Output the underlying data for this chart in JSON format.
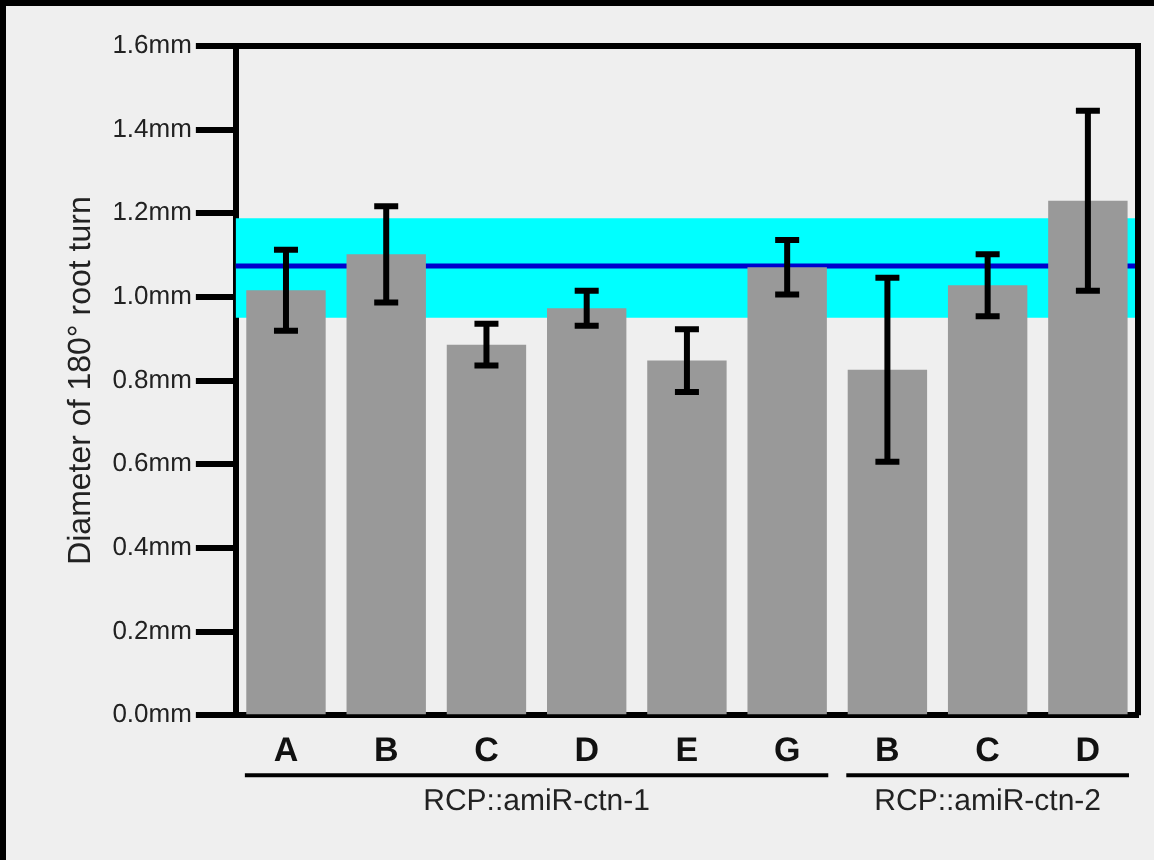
{
  "chart_data": {
    "type": "bar",
    "ylabel": "Diameter of 180° root turn",
    "categories": [
      "A",
      "B",
      "C",
      "D",
      "E",
      "G",
      "B",
      "C",
      "D"
    ],
    "values": [
      1.016,
      1.102,
      0.886,
      0.973,
      0.848,
      1.071,
      0.826,
      1.028,
      1.23
    ],
    "errors": [
      0.097,
      0.115,
      0.05,
      0.042,
      0.075,
      0.065,
      0.22,
      0.074,
      0.215
    ],
    "color": "#999999",
    "ylim": [
      0,
      1.6
    ],
    "yticks": [
      {
        "value": 0,
        "label": "0.0mm"
      },
      {
        "value": 0.2,
        "label": "0.2mm"
      },
      {
        "value": 0.4,
        "label": "0.4mm"
      },
      {
        "value": 0.6,
        "label": "0.6mm"
      },
      {
        "value": 0.8,
        "label": "0.8mm"
      },
      {
        "value": 1.0,
        "label": "1.0mm"
      },
      {
        "value": 1.2,
        "label": "1.2mm"
      },
      {
        "value": 1.4,
        "label": "1.4mm"
      },
      {
        "value": 1.6,
        "label": "1.6mm"
      }
    ],
    "ref_lines": [
      {
        "axis": "y",
        "value": 1.074,
        "color": "#0000cc"
      }
    ],
    "bands": [
      {
        "axis": "y",
        "from": 0.95,
        "to": 1.188,
        "color": "#00ffff"
      }
    ],
    "annotations": [
      "RCP::amiR-ctn-1",
      "RCP::amiR-ctn-2"
    ],
    "grid": false,
    "legend": false
  }
}
